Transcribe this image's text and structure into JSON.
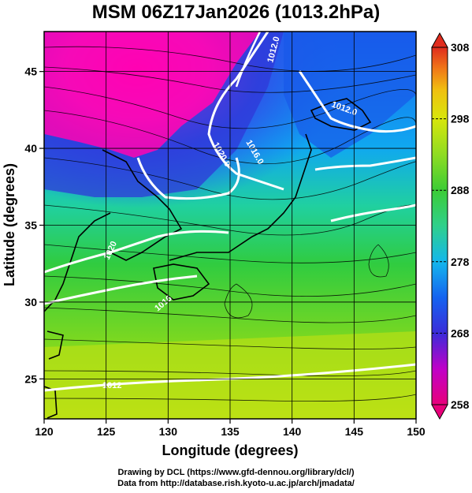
{
  "title": "MSM 06Z17Jan2026 (1013.2hPa)",
  "chart_data": {
    "type": "heatmap",
    "title": "MSM 06Z17Jan2026 (1013.2hPa)",
    "xlabel": "Longitude (degrees)",
    "ylabel": "Latitude  (degrees)",
    "xlim": [
      120,
      150
    ],
    "ylim": [
      22.4,
      47.6
    ],
    "x_ticks": [
      "120",
      "125",
      "130",
      "135",
      "140",
      "145",
      "150"
    ],
    "y_ticks": [
      "25",
      "30",
      "35",
      "40",
      "45"
    ],
    "grid": true,
    "colorbar": {
      "range": [
        258,
        308
      ],
      "ticks": [
        "308",
        "298",
        "288",
        "278",
        "268",
        "258"
      ],
      "colors": [
        "#e8007a",
        "#c000c8",
        "#3b2cd9",
        "#1463f0",
        "#14b7ec",
        "#2fd08c",
        "#3ccc36",
        "#8fdc22",
        "#d8e60c",
        "#f0c010",
        "#f07818",
        "#e02c1e"
      ]
    },
    "contours": [
      {
        "label": "1012.0"
      },
      {
        "label": "1012.0"
      },
      {
        "label": "1016.0"
      },
      {
        "label": "1020.0"
      },
      {
        "label": "1020"
      },
      {
        "label": "1016"
      },
      {
        "label": "1012"
      }
    ]
  },
  "credits": {
    "line1": "Drawing by DCL (https://www.gfd-dennou.org/library/dcl/)",
    "line2": "Data from http://database.rish.kyoto-u.ac.jp/arch/jmadata/"
  }
}
